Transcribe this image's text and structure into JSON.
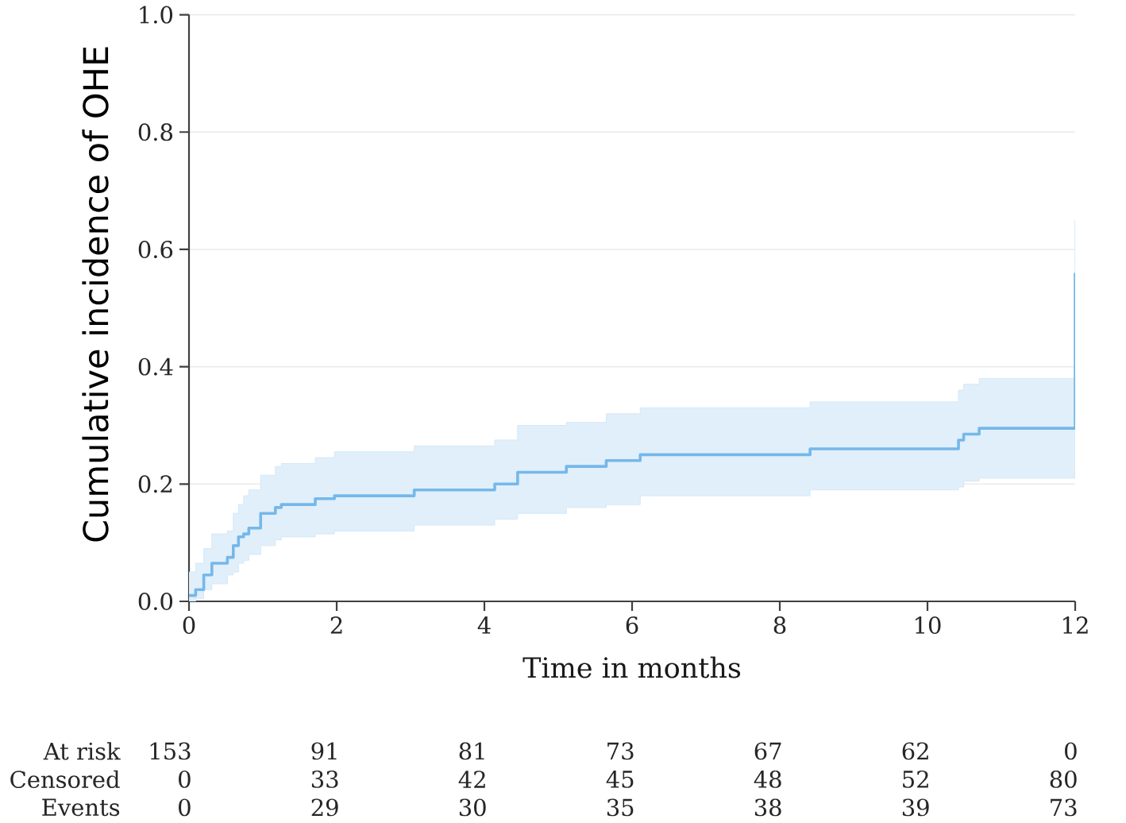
{
  "chart_data": {
    "type": "step",
    "xlabel": "Time in months",
    "ylabel": "Cumulative incidence of OHE",
    "xlim": [
      0,
      12
    ],
    "ylim": [
      0,
      1
    ],
    "xticks": [
      0,
      2,
      4,
      6,
      8,
      10,
      12
    ],
    "yticks": [
      {
        "value": 0,
        "label": "0.0"
      },
      0.2,
      0.4,
      0.6,
      0.8,
      {
        "value": 1,
        "label": "1.0"
      }
    ],
    "grid": "y",
    "series": [
      {
        "color": "#75b8ea",
        "x": [
          0,
          0.09,
          0.2,
          0.31,
          0.52,
          0.6,
          0.67,
          0.74,
          0.81,
          0.97,
          1.17,
          1.25,
          1.71,
          1.97,
          3.05,
          4.14,
          4.45,
          5.11,
          5.65,
          6.11,
          8.41,
          10.42,
          10.49,
          10.7,
          12
        ],
        "values": [
          0.01,
          0.02,
          0.045,
          0.065,
          0.075,
          0.095,
          0.11,
          0.115,
          0.125,
          0.15,
          0.16,
          0.165,
          0.175,
          0.18,
          0.19,
          0.2,
          0.22,
          0.23,
          0.24,
          0.25,
          0.26,
          0.275,
          0.285,
          0.295,
          0.56
        ],
        "lower": [
          0.0,
          0.005,
          0.02,
          0.03,
          0.045,
          0.05,
          0.065,
          0.07,
          0.08,
          0.095,
          0.105,
          0.11,
          0.115,
          0.12,
          0.13,
          0.14,
          0.15,
          0.16,
          0.165,
          0.18,
          0.19,
          0.195,
          0.205,
          0.21,
          0.21
        ],
        "upper": [
          0.05,
          0.065,
          0.09,
          0.115,
          0.12,
          0.15,
          0.165,
          0.18,
          0.19,
          0.215,
          0.23,
          0.235,
          0.245,
          0.255,
          0.265,
          0.275,
          0.3,
          0.305,
          0.32,
          0.33,
          0.34,
          0.36,
          0.37,
          0.38,
          0.65
        ]
      }
    ],
    "annotations": [
      "At risk",
      "153",
      "91",
      "81",
      "73",
      "67",
      "62",
      "0",
      "Censored",
      "0",
      "33",
      "42",
      "45",
      "48",
      "52",
      "80",
      "Events",
      "0",
      "29",
      "30",
      "35",
      "38",
      "39",
      "73"
    ]
  }
}
